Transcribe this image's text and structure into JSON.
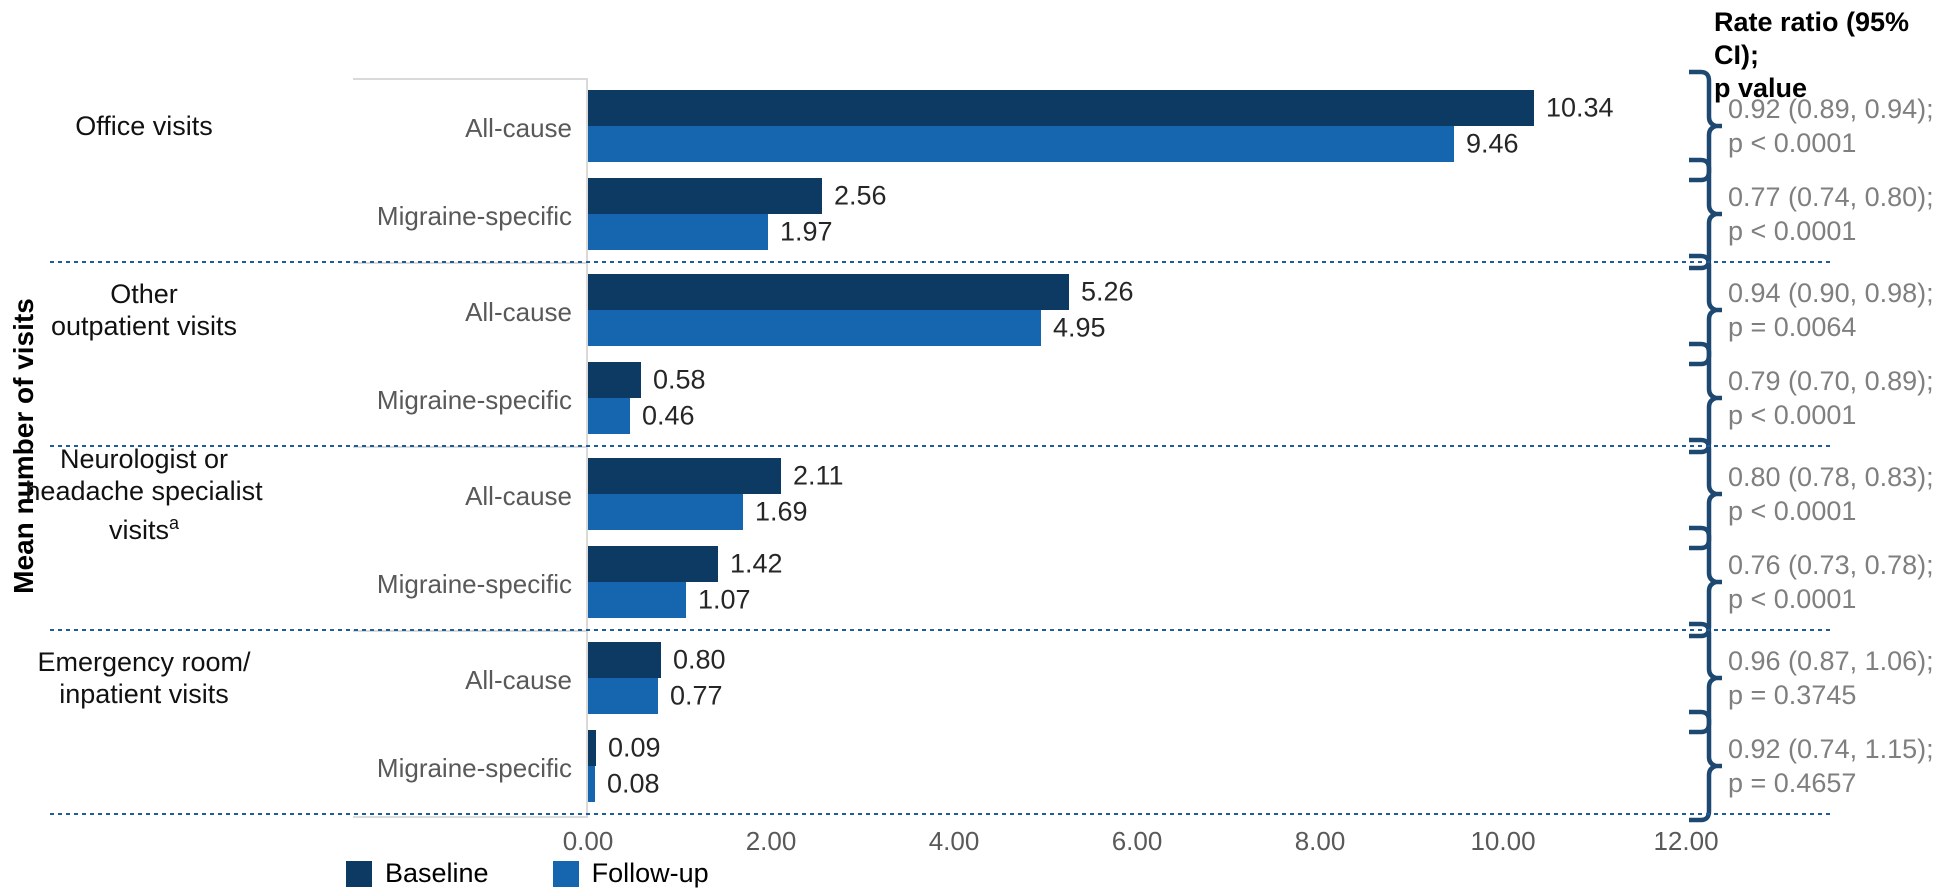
{
  "chart_data": {
    "type": "bar",
    "orientation": "horizontal",
    "title": "",
    "ylabel": "Mean number of visits",
    "rate_column_header": [
      "Rate ratio (95% CI);",
      "p value"
    ],
    "x_axis": {
      "min": 0,
      "max": 12,
      "tick_labels": [
        "0.00",
        "2.00",
        "4.00",
        "6.00",
        "8.00",
        "10.00",
        "12.00"
      ],
      "tick_values": [
        0,
        2,
        4,
        6,
        8,
        10,
        12
      ]
    },
    "legend": {
      "position": "bottom",
      "entries": [
        {
          "name": "Baseline",
          "color": "#0d3a63"
        },
        {
          "name": "Follow-up",
          "color": "#1565af"
        }
      ]
    },
    "colors": {
      "baseline_bar": "#0d3a63",
      "followup_bar": "#1565af",
      "bracket": "#1d4872",
      "dashed_separator": "#1f5c99",
      "axis_gray": "#d9d9d9",
      "value_label": "#262626",
      "sub_label": "#595959",
      "rate_text": "#7f7f7f"
    },
    "groups": [
      {
        "category_lines": [
          "Office visits"
        ],
        "category_sup": "",
        "rows": [
          {
            "label": "All-cause",
            "baseline": {
              "value": 10.34,
              "label": "10.34"
            },
            "followup": {
              "value": 9.46,
              "label": "9.46"
            },
            "rate": {
              "text": "0.92 (0.89, 0.94);",
              "p": "p < 0.0001"
            }
          },
          {
            "label": "Migraine-specific",
            "baseline": {
              "value": 2.56,
              "label": "2.56"
            },
            "followup": {
              "value": 1.97,
              "label": "1.97"
            },
            "rate": {
              "text": "0.77 (0.74, 0.80);",
              "p": "p < 0.0001"
            }
          }
        ]
      },
      {
        "category_lines": [
          "Other",
          "outpatient visits"
        ],
        "category_sup": "",
        "rows": [
          {
            "label": "All-cause",
            "baseline": {
              "value": 5.26,
              "label": "5.26"
            },
            "followup": {
              "value": 4.95,
              "label": "4.95"
            },
            "rate": {
              "text": "0.94 (0.90, 0.98);",
              "p": "p = 0.0064"
            }
          },
          {
            "label": "Migraine-specific",
            "baseline": {
              "value": 0.58,
              "label": "0.58"
            },
            "followup": {
              "value": 0.46,
              "label": "0.46"
            },
            "rate": {
              "text": "0.79 (0.70, 0.89);",
              "p": "p < 0.0001"
            }
          }
        ]
      },
      {
        "category_lines": [
          "Neurologist or",
          "headache specialist",
          "visits"
        ],
        "category_sup": "a",
        "rows": [
          {
            "label": "All-cause",
            "baseline": {
              "value": 2.11,
              "label": "2.11"
            },
            "followup": {
              "value": 1.69,
              "label": "1.69"
            },
            "rate": {
              "text": "0.80 (0.78, 0.83);",
              "p": "p < 0.0001"
            }
          },
          {
            "label": "Migraine-specific",
            "baseline": {
              "value": 1.42,
              "label": "1.42"
            },
            "followup": {
              "value": 1.07,
              "label": "1.07"
            },
            "rate": {
              "text": "0.76 (0.73, 0.78);",
              "p": "p < 0.0001"
            }
          }
        ]
      },
      {
        "category_lines": [
          "Emergency room/",
          "inpatient visits"
        ],
        "category_sup": "",
        "rows": [
          {
            "label": "All-cause",
            "baseline": {
              "value": 0.8,
              "label": "0.80"
            },
            "followup": {
              "value": 0.77,
              "label": "0.77"
            },
            "rate": {
              "text": "0.96 (0.87, 1.06);",
              "p": "p = 0.3745"
            }
          },
          {
            "label": "Migraine-specific",
            "baseline": {
              "value": 0.09,
              "label": "0.09"
            },
            "followup": {
              "value": 0.08,
              "label": "0.08"
            },
            "rate": {
              "text": "0.92 (0.74, 1.15);",
              "p": "p = 0.4657"
            }
          }
        ]
      }
    ]
  }
}
